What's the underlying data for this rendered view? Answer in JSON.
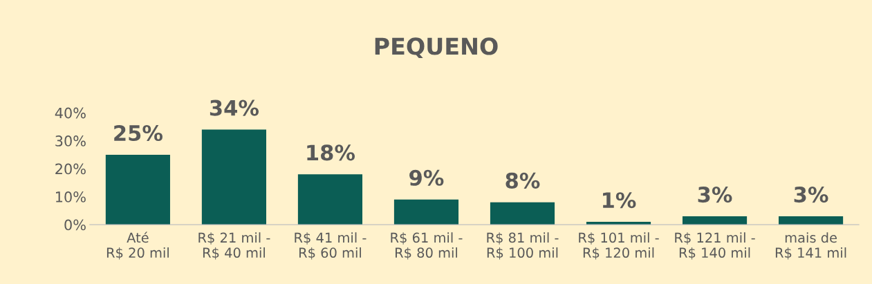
{
  "chart_data": {
    "type": "bar",
    "title": "PEQUENO",
    "categories": [
      "Até\nR$ 20 mil",
      "R$ 21 mil -\nR$ 40 mil",
      "R$ 41 mil -\nR$ 60 mil",
      "R$ 61 mil -\nR$ 80 mil",
      "R$ 81 mil -\nR$ 100 mil",
      "R$ 101 mil -\nR$ 120 mil",
      "R$ 121 mil -\nR$ 140 mil",
      "mais de\nR$ 141 mil"
    ],
    "values": [
      25,
      34,
      18,
      9,
      8,
      1,
      3,
      3
    ],
    "value_labels": [
      "25%",
      "34%",
      "18%",
      "9%",
      "8%",
      "1%",
      "3%",
      "3%"
    ],
    "color": "#0b5e55",
    "ylim": [
      0,
      40
    ],
    "yticks": [
      {
        "value": 0,
        "label": "0%"
      },
      {
        "value": 10,
        "label": "10%"
      },
      {
        "value": 20,
        "label": "20%"
      },
      {
        "value": 30,
        "label": "30%"
      },
      {
        "value": 40,
        "label": "40%"
      }
    ],
    "grid": false,
    "legend": false
  }
}
